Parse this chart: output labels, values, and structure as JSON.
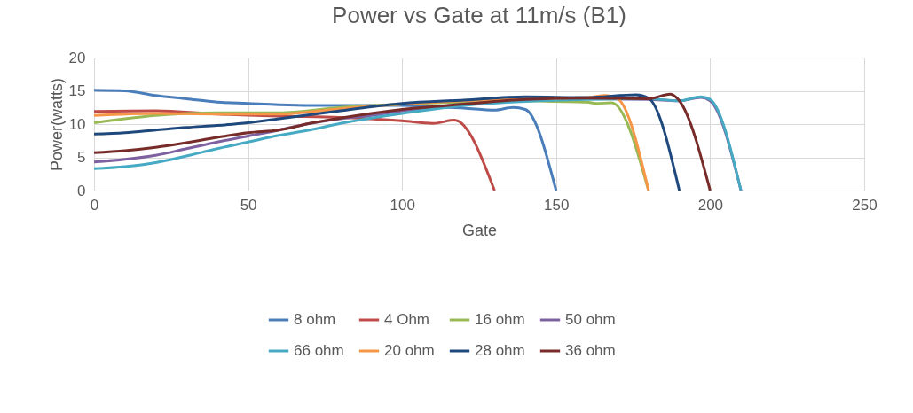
{
  "chart_data": {
    "type": "line",
    "title": "Power vs Gate at 11m/s (B1)",
    "xlabel": "Gate",
    "ylabel": "Power(watts)",
    "xlim": [
      0,
      250
    ],
    "xticks": [
      0,
      50,
      100,
      150,
      200,
      250
    ],
    "ylim": [
      0,
      20
    ],
    "yticks": [
      0,
      5,
      10,
      15,
      20
    ],
    "grid": true,
    "legend": "bottom",
    "line_style": "solid",
    "marker": "none",
    "series": [
      {
        "name": "8 ohm",
        "color": "#4a7ebb",
        "x": [
          0,
          10,
          20,
          30,
          40,
          50,
          60,
          70,
          80,
          90,
          100,
          110,
          120,
          130,
          136,
          140,
          150
        ],
        "values": [
          15.1,
          15.0,
          14.3,
          13.8,
          13.3,
          13.1,
          12.9,
          12.8,
          12.8,
          12.8,
          12.8,
          12.6,
          12.4,
          12.1,
          12.5,
          12.2,
          0
        ]
      },
      {
        "name": "4 Ohm",
        "color": "#be4b48",
        "x": [
          0,
          20,
          40,
          60,
          80,
          100,
          110,
          117,
          130
        ],
        "values": [
          11.9,
          12.0,
          11.5,
          11.2,
          11.0,
          10.5,
          10.1,
          10.6,
          0
        ]
      },
      {
        "name": "16 ohm",
        "color": "#98b954",
        "x": [
          0,
          10,
          20,
          30,
          40,
          60,
          80,
          100,
          120,
          140,
          150,
          160,
          163,
          168,
          180
        ],
        "values": [
          10.2,
          10.8,
          11.3,
          11.6,
          11.7,
          11.7,
          12.5,
          13.0,
          13.3,
          13.5,
          13.4,
          13.3,
          13.1,
          13.2,
          0
        ]
      },
      {
        "name": "50 ohm",
        "color": "#7d60a0",
        "x": [
          0,
          10,
          20,
          30,
          40,
          50,
          60,
          70,
          80,
          90,
          100,
          120,
          140,
          160,
          180,
          190,
          197,
          200,
          210
        ],
        "values": [
          4.3,
          4.7,
          5.3,
          6.3,
          7.3,
          8.2,
          9.1,
          10.1,
          10.8,
          11.3,
          12.0,
          13.0,
          13.6,
          13.8,
          13.7,
          13.5,
          14.0,
          13.5,
          0
        ]
      },
      {
        "name": "66 ohm",
        "color": "#46aac5",
        "x": [
          0,
          10,
          20,
          30,
          40,
          50,
          60,
          70,
          80,
          90,
          100,
          120,
          140,
          160,
          180,
          190,
          197,
          200,
          210
        ],
        "values": [
          3.3,
          3.6,
          4.2,
          5.2,
          6.3,
          7.3,
          8.3,
          9.1,
          10.1,
          10.9,
          11.6,
          12.8,
          13.4,
          13.7,
          13.8,
          13.5,
          14.1,
          13.7,
          0
        ]
      },
      {
        "name": "20 ohm",
        "color": "#f79646",
        "x": [
          0,
          20,
          40,
          60,
          80,
          100,
          120,
          140,
          160,
          166,
          170,
          180
        ],
        "values": [
          11.3,
          11.6,
          11.5,
          11.5,
          12.3,
          13.0,
          13.5,
          13.8,
          14.0,
          14.3,
          13.8,
          0
        ]
      },
      {
        "name": "28 ohm",
        "color": "#1f497d",
        "x": [
          0,
          10,
          20,
          30,
          40,
          50,
          60,
          70,
          80,
          90,
          100,
          120,
          140,
          160,
          176,
          180,
          190
        ],
        "values": [
          8.5,
          8.7,
          9.1,
          9.5,
          9.8,
          10.2,
          10.8,
          11.4,
          12.0,
          12.6,
          13.1,
          13.6,
          14.1,
          14.0,
          14.4,
          13.9,
          0
        ]
      },
      {
        "name": "36 ohm",
        "color": "#772c2a",
        "x": [
          0,
          10,
          20,
          30,
          40,
          50,
          60,
          70,
          80,
          90,
          100,
          120,
          140,
          160,
          180,
          187,
          190,
          200
        ],
        "values": [
          5.7,
          6.0,
          6.5,
          7.2,
          8.0,
          8.7,
          9.1,
          10.1,
          10.9,
          11.6,
          12.2,
          13.0,
          13.7,
          13.9,
          13.8,
          14.5,
          13.5,
          0
        ]
      }
    ]
  }
}
